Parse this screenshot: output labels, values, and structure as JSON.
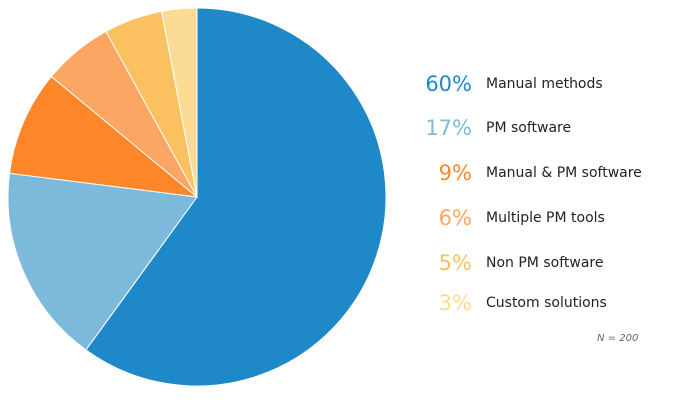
{
  "chart_data": {
    "type": "pie",
    "categories": [
      "Manual methods",
      "PM software",
      "Manual & PM software",
      "Multiple PM tools",
      "Non PM software",
      "Custom solutions"
    ],
    "values": [
      60,
      17,
      9,
      6,
      5,
      3
    ],
    "value_labels": [
      "60%",
      "17%",
      "9%",
      "6%",
      "5%",
      "3%"
    ],
    "colors": [
      "#1f88c8",
      "#7db9da",
      "#fd8728",
      "#fca664",
      "#fbc160",
      "#fcdb94"
    ],
    "start_angle": "12 o'clock",
    "direction": "clockwise",
    "legend_position": "right",
    "note": "N = 200"
  }
}
